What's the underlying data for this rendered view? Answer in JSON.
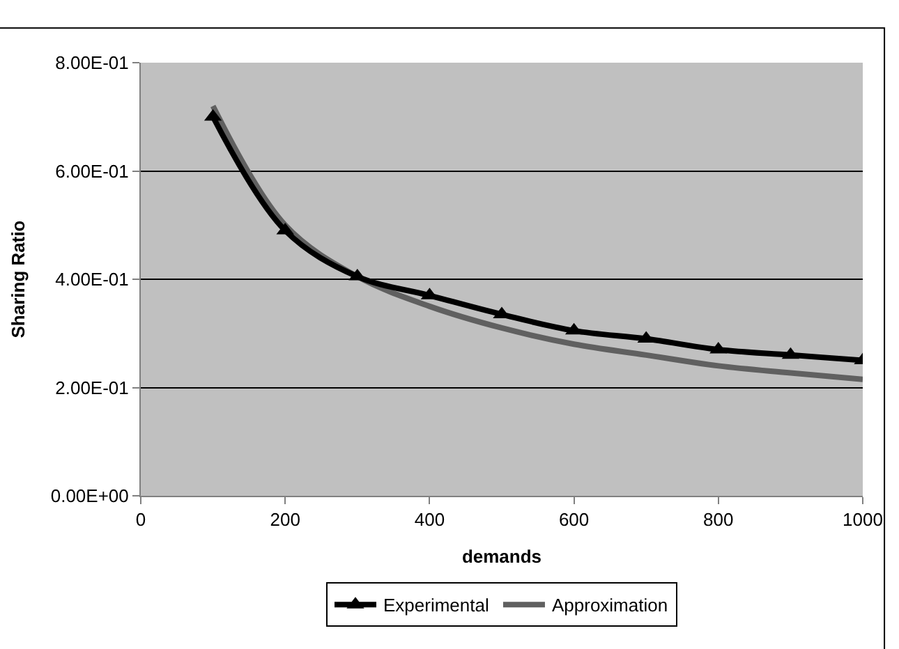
{
  "chart_data": {
    "type": "line",
    "xlabel": "demands",
    "ylabel": "Sharing Ratio",
    "x": [
      100,
      200,
      300,
      400,
      500,
      600,
      700,
      800,
      900,
      1000
    ],
    "series": [
      {
        "name": "Experimental",
        "color": "#000000",
        "marker": "triangle",
        "values": [
          0.7,
          0.49,
          0.405,
          0.37,
          0.335,
          0.305,
          0.29,
          0.27,
          0.26,
          0.25
        ]
      },
      {
        "name": "Approximation",
        "color": "#606060",
        "marker": "none",
        "values": [
          0.72,
          0.5,
          0.405,
          0.35,
          0.31,
          0.28,
          0.26,
          0.24,
          0.227,
          0.215
        ]
      }
    ],
    "xlim": [
      0,
      1000
    ],
    "xticks": [
      0,
      200,
      400,
      600,
      800,
      1000
    ],
    "ylim": [
      0,
      0.8
    ],
    "yticks": [
      {
        "value": 0,
        "label": "0.00E+00"
      },
      {
        "value": 0.2,
        "label": "2.00E-01"
      },
      {
        "value": 0.4,
        "label": "4.00E-01"
      },
      {
        "value": 0.6,
        "label": "6.00E-01"
      },
      {
        "value": 0.8,
        "label": "8.00E-01"
      }
    ],
    "grid": "y",
    "legend": "bottom",
    "line_style": "solid"
  }
}
